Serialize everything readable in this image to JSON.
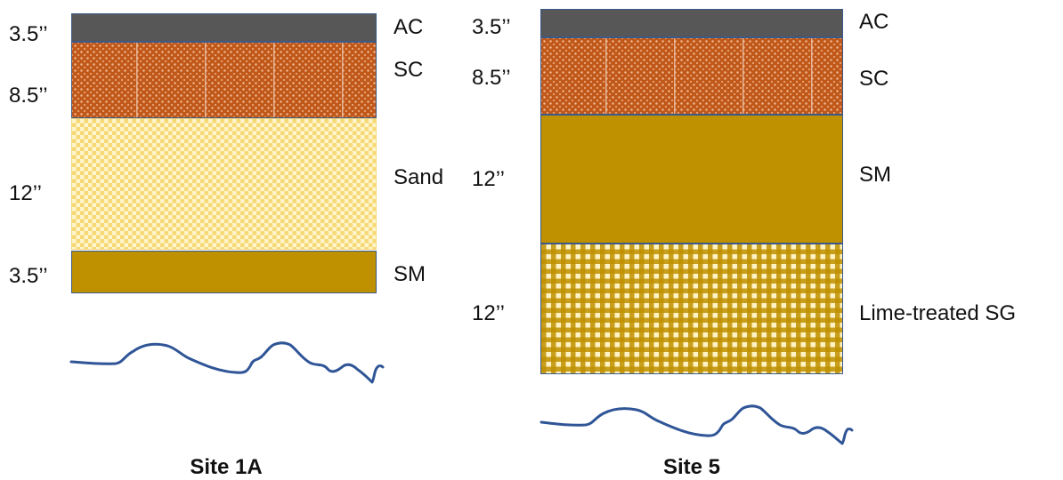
{
  "sites": [
    {
      "title": "Site 1A",
      "layers": [
        {
          "material": "AC",
          "thickness": "3.5’’",
          "pattern": "dark-gray-solid",
          "color": "#575757"
        },
        {
          "material": "SC",
          "thickness": "8.5’’",
          "pattern": "orange-dotted",
          "color": "#c0581a"
        },
        {
          "material": "Sand",
          "thickness": "12’’",
          "pattern": "light-yellow-checker",
          "color": "#f6d66e"
        },
        {
          "material": "SM",
          "thickness": "3.5’’",
          "pattern": "olive-solid",
          "color": "#bf9000"
        }
      ]
    },
    {
      "title": "Site 5",
      "layers": [
        {
          "material": "AC",
          "thickness": "3.5’’",
          "pattern": "dark-gray-solid",
          "color": "#575757"
        },
        {
          "material": "SC",
          "thickness": "8.5’’",
          "pattern": "orange-dotted",
          "color": "#c0581a"
        },
        {
          "material": "SM",
          "thickness": "12’’",
          "pattern": "olive-solid",
          "color": "#bf9000"
        },
        {
          "material": "Lime-treated SG",
          "thickness": "12’’",
          "pattern": "yellow-gingham",
          "color": "#bf9000"
        }
      ]
    }
  ],
  "ground_line_color": "#2f5597",
  "layer_border_color": "#3b5a8a"
}
